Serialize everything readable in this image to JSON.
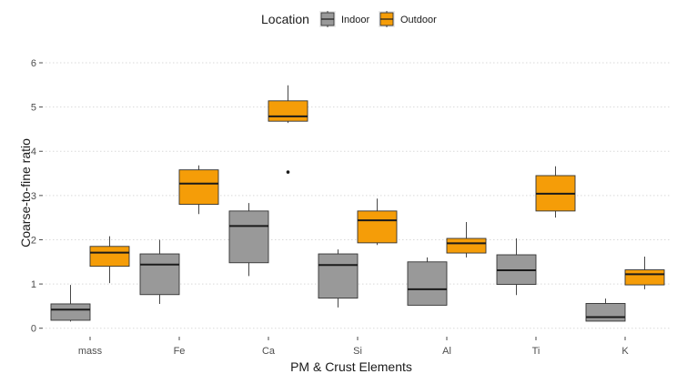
{
  "chart_data": {
    "type": "boxplot",
    "xlabel": "PM & Crust Elements",
    "ylabel": "Coarse-to-fine ratio",
    "ylim": [
      -0.15,
      6.35
    ],
    "yticks": [
      0,
      1,
      2,
      3,
      4,
      5,
      6
    ],
    "grid": "horizontal dotted",
    "legend": {
      "title": "Location",
      "placement": "top"
    },
    "categories": [
      "mass",
      "Fe",
      "Ca",
      "Si",
      "Al",
      "Ti",
      "K"
    ],
    "series": [
      {
        "name": "Indoor",
        "color": "#999999",
        "boxes": [
          {
            "min": 0.15,
            "q1": 0.18,
            "median": 0.42,
            "q3": 0.55,
            "max": 0.98,
            "outliers": []
          },
          {
            "min": 0.55,
            "q1": 0.76,
            "median": 1.44,
            "q3": 1.68,
            "max": 2.0,
            "outliers": []
          },
          {
            "min": 1.18,
            "q1": 1.48,
            "median": 2.31,
            "q3": 2.65,
            "max": 2.83,
            "outliers": []
          },
          {
            "min": 0.47,
            "q1": 0.68,
            "median": 1.43,
            "q3": 1.68,
            "max": 1.78,
            "outliers": []
          },
          {
            "min": 0.52,
            "q1": 0.52,
            "median": 0.88,
            "q3": 1.5,
            "max": 1.6,
            "outliers": []
          },
          {
            "min": 0.75,
            "q1": 0.99,
            "median": 1.31,
            "q3": 1.66,
            "max": 2.03,
            "outliers": []
          },
          {
            "min": 0.16,
            "q1": 0.16,
            "median": 0.25,
            "q3": 0.56,
            "max": 0.67,
            "outliers": []
          }
        ]
      },
      {
        "name": "Outdoor",
        "color": "#F59D08",
        "boxes": [
          {
            "min": 1.02,
            "q1": 1.4,
            "median": 1.71,
            "q3": 1.85,
            "max": 2.08,
            "outliers": []
          },
          {
            "min": 2.58,
            "q1": 2.8,
            "median": 3.27,
            "q3": 3.58,
            "max": 3.68,
            "outliers": []
          },
          {
            "min": 4.64,
            "q1": 4.68,
            "median": 4.79,
            "q3": 5.14,
            "max": 5.49,
            "outliers": [
              3.53
            ]
          },
          {
            "min": 1.88,
            "q1": 1.93,
            "median": 2.44,
            "q3": 2.65,
            "max": 2.93,
            "outliers": []
          },
          {
            "min": 1.6,
            "q1": 1.7,
            "median": 1.92,
            "q3": 2.03,
            "max": 2.4,
            "outliers": []
          },
          {
            "min": 2.5,
            "q1": 2.65,
            "median": 3.04,
            "q3": 3.45,
            "max": 3.66,
            "outliers": []
          },
          {
            "min": 0.88,
            "q1": 0.98,
            "median": 1.22,
            "q3": 1.32,
            "max": 1.62,
            "outliers": []
          }
        ]
      }
    ]
  }
}
